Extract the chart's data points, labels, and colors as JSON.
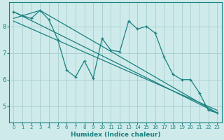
{
  "xlabel": "Humidex (Indice chaleur)",
  "background_color": "#ceeaea",
  "grid_color": "#a8cece",
  "line_color": "#1a8080",
  "xlim": [
    -0.5,
    23.5
  ],
  "ylim": [
    4.4,
    8.9
  ],
  "yticks": [
    5,
    6,
    7,
    8
  ],
  "xticks": [
    0,
    1,
    2,
    3,
    4,
    5,
    6,
    7,
    8,
    9,
    10,
    11,
    12,
    13,
    14,
    15,
    16,
    17,
    18,
    19,
    20,
    21,
    22,
    23
  ],
  "zigzag_x": [
    0,
    1,
    2,
    3,
    4,
    5,
    6,
    7,
    8,
    9,
    10,
    11,
    12,
    13,
    14,
    15,
    16,
    17,
    18,
    19,
    20,
    21,
    22,
    23
  ],
  "zigzag_y": [
    8.55,
    8.4,
    8.3,
    8.6,
    8.25,
    7.5,
    6.35,
    6.1,
    6.7,
    6.05,
    7.55,
    7.1,
    7.05,
    8.2,
    7.9,
    8.0,
    7.75,
    6.85,
    6.2,
    6.0,
    6.0,
    5.5,
    4.85,
    4.75
  ],
  "line_straight1": [
    [
      0,
      8.55
    ],
    [
      23,
      4.75
    ]
  ],
  "line_straight2": [
    [
      0,
      8.3
    ],
    [
      3,
      8.6
    ],
    [
      23,
      4.75
    ]
  ],
  "line_straight3": [
    [
      0,
      8.2
    ],
    [
      23,
      4.85
    ]
  ]
}
